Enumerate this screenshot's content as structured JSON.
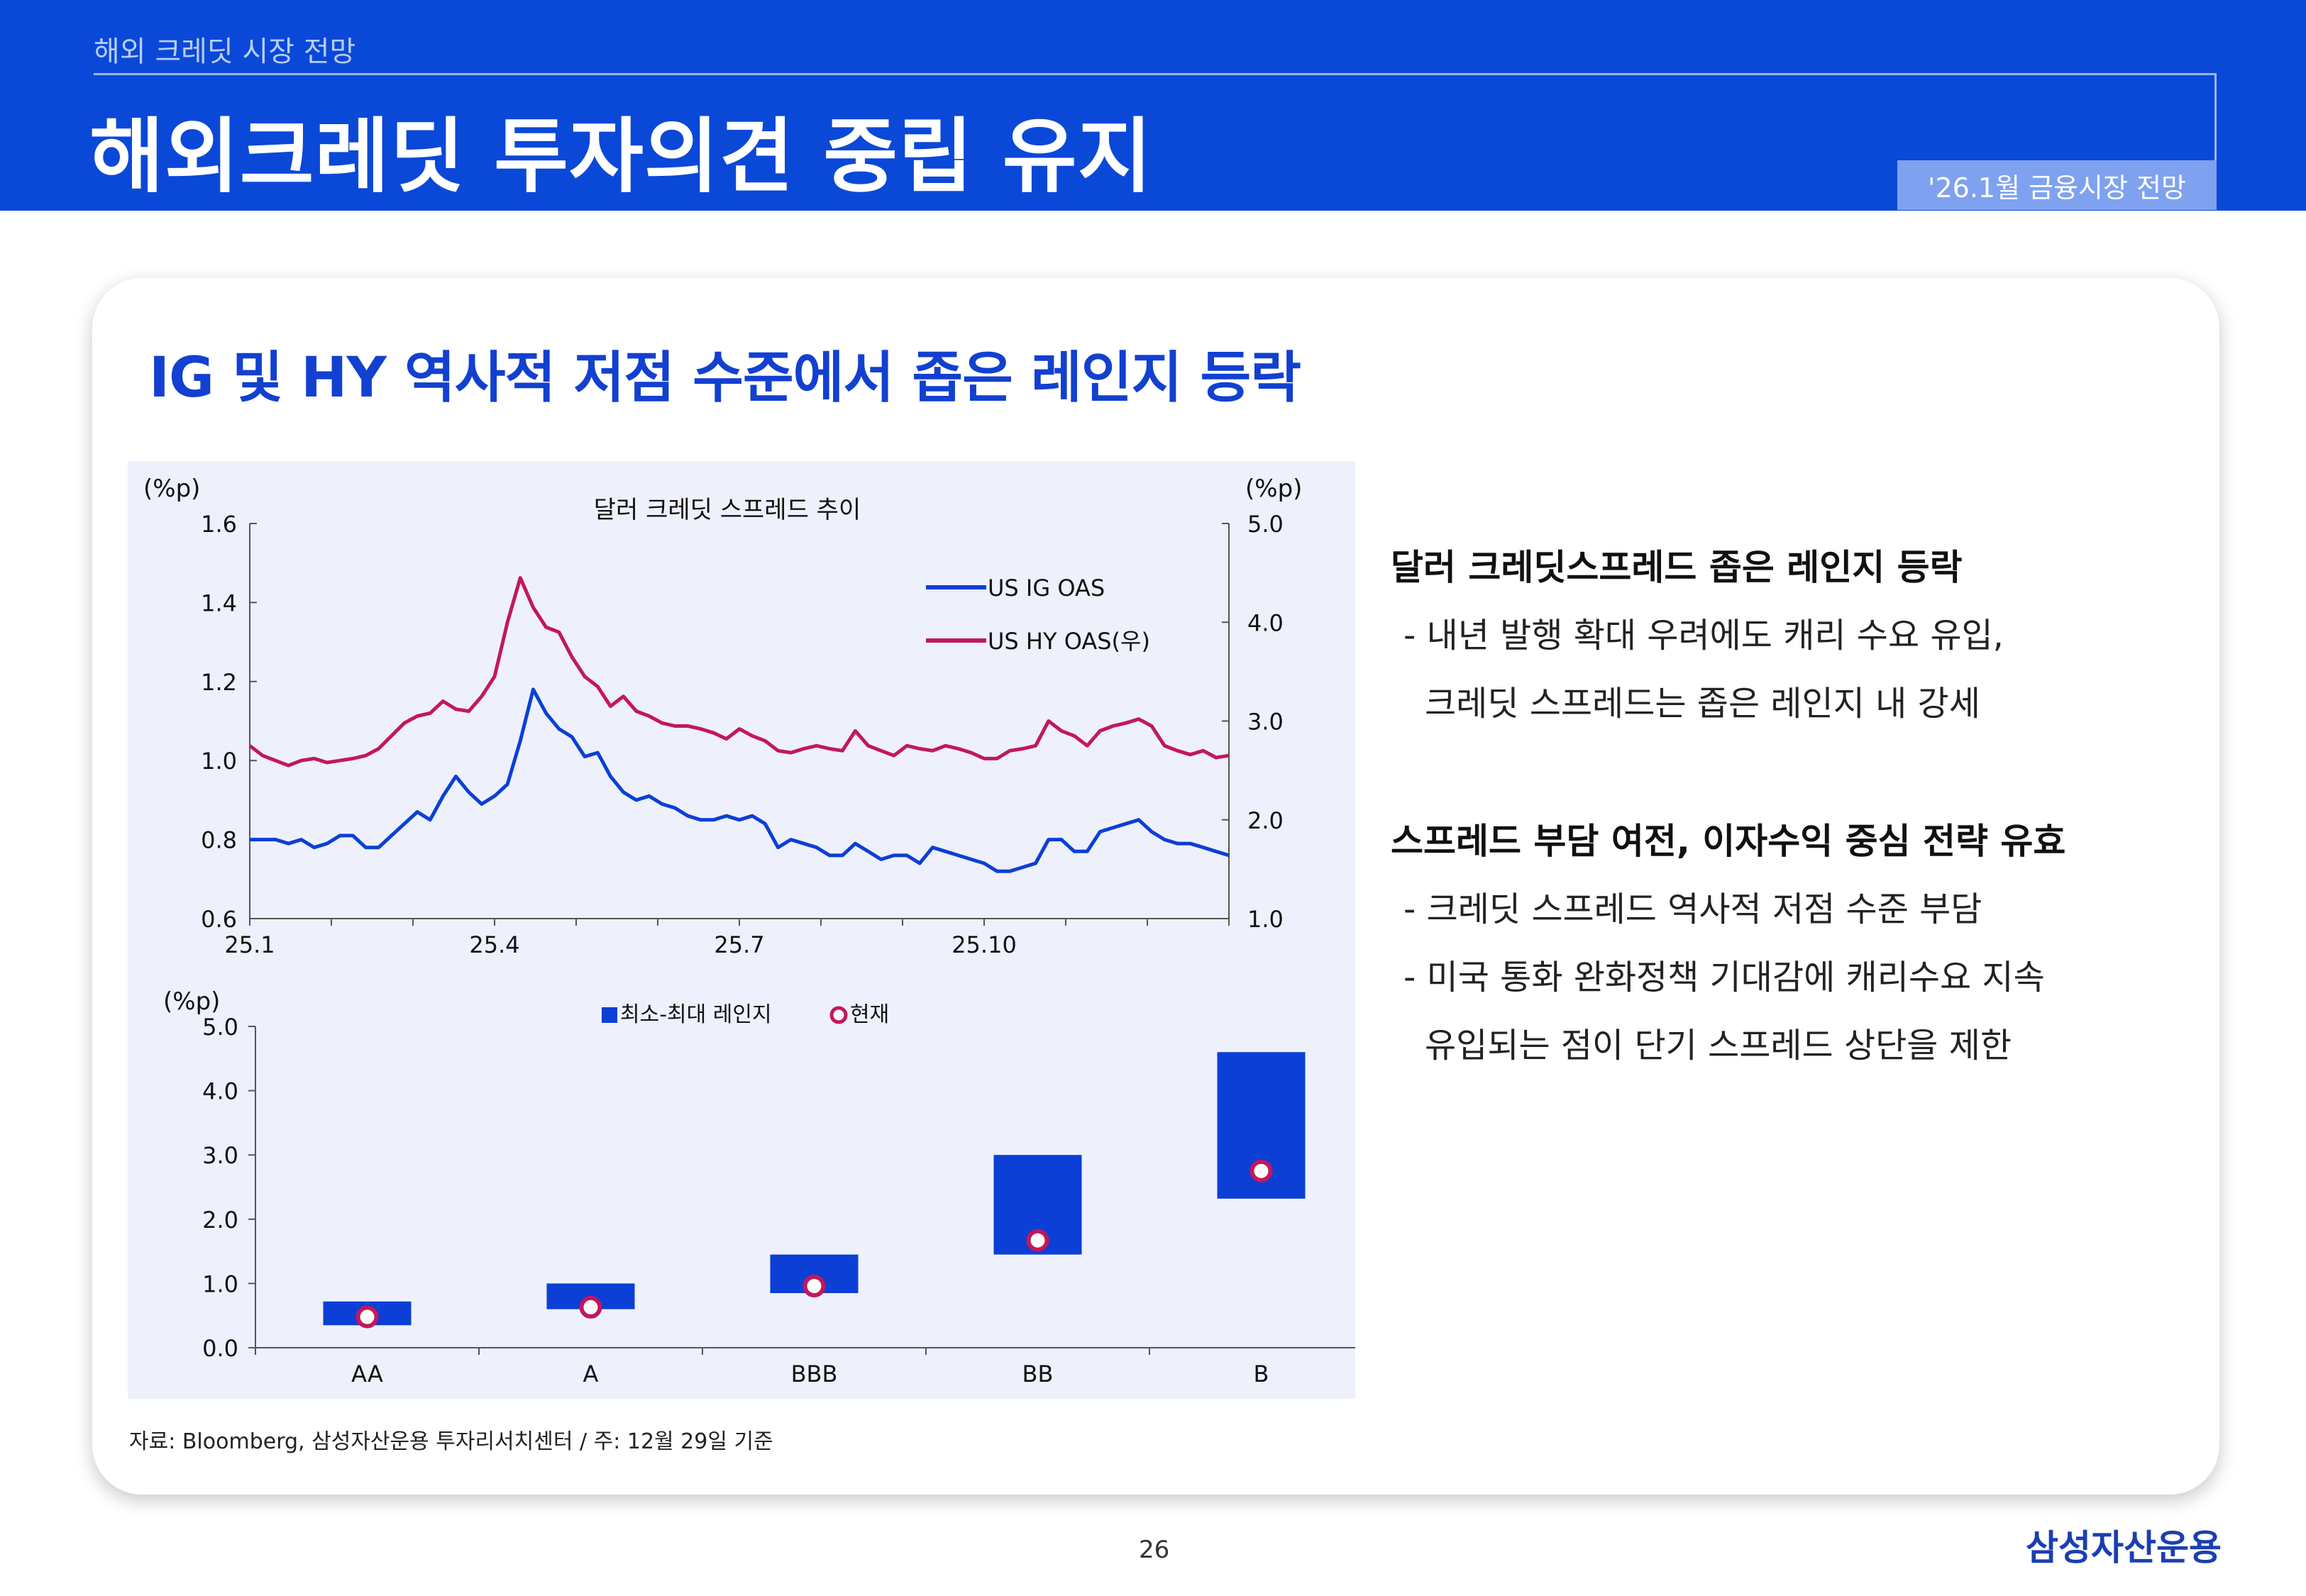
{
  "header": {
    "subtitle": "해외 크레딧 시장 전망",
    "title": "해외크레딧 투자의견 중립 유지",
    "badge": "'26.1월 금융시장 전망"
  },
  "card": {
    "headline": "IG 및 HY 역사적 저점 수준에서 좁은 레인지 등락",
    "source": "자료: Bloomberg, 삼성자산운용 투자리서치센터 / 주: 12월 29일 기준"
  },
  "bullets": {
    "section1_title": "달러 크레딧스프레드 좁은 레인지 등락",
    "section1_line1": "- 내년 발행 확대 우려에도 캐리 수요 유입,",
    "section1_line2": "크레딧 스프레드는 좁은 레인지 내 강세",
    "section2_title": "스프레드 부담 여전, 이자수익 중심 전략 유효",
    "section2_line1": "- 크레딧 스프레드 역사적 저점 수준 부담",
    "section2_line2": "- 미국 통화 완화정책 기대감에 캐리수요 지속",
    "section2_line3": "유입되는 점이 단기 스프레드 상단을 제한"
  },
  "footer": {
    "page_number": "26",
    "logo": "삼성자산운용"
  },
  "colors": {
    "brand_blue": "#0a48d8",
    "ig_line": "#0b3fd6",
    "hy_line": "#c2185b",
    "range_bar": "#0b3fd6",
    "current_marker": "#c2185b"
  },
  "chart_data": [
    {
      "type": "line",
      "title": "달러 크레딧 스프레드 추이",
      "y_left_unit": "(%p)",
      "y_right_unit": "(%p)",
      "x_ticks": [
        "25.1",
        "25.4",
        "25.7",
        "25.10"
      ],
      "y_left_ticks": [
        "0.6",
        "0.8",
        "1.0",
        "1.2",
        "1.4",
        "1.6"
      ],
      "y_right_ticks": [
        "1.0",
        "2.0",
        "3.0",
        "4.0",
        "5.0"
      ],
      "ylim_left": [
        0.6,
        1.6
      ],
      "ylim_right": [
        1.0,
        5.0
      ],
      "legend_position": "top-right",
      "series": [
        {
          "name": "US IG OAS",
          "axis": "left",
          "color": "#0b3fd6",
          "values": [
            0.8,
            0.8,
            0.8,
            0.79,
            0.8,
            0.78,
            0.79,
            0.81,
            0.81,
            0.78,
            0.78,
            0.81,
            0.84,
            0.87,
            0.85,
            0.91,
            0.96,
            0.92,
            0.89,
            0.91,
            0.94,
            1.05,
            1.18,
            1.12,
            1.08,
            1.06,
            1.01,
            1.02,
            0.96,
            0.92,
            0.9,
            0.91,
            0.89,
            0.88,
            0.86,
            0.85,
            0.85,
            0.86,
            0.85,
            0.86,
            0.84,
            0.78,
            0.8,
            0.79,
            0.78,
            0.76,
            0.76,
            0.79,
            0.77,
            0.75,
            0.76,
            0.76,
            0.74,
            0.78,
            0.77,
            0.76,
            0.75,
            0.74,
            0.72,
            0.72,
            0.73,
            0.74,
            0.8,
            0.8,
            0.77,
            0.77,
            0.82,
            0.83,
            0.84,
            0.85,
            0.82,
            0.8,
            0.79,
            0.79,
            0.78,
            0.77,
            0.76
          ]
        },
        {
          "name": "US HY OAS(우)",
          "axis": "right",
          "color": "#c2185b",
          "values": [
            2.75,
            2.65,
            2.6,
            2.55,
            2.6,
            2.62,
            2.58,
            2.6,
            2.62,
            2.65,
            2.72,
            2.85,
            2.98,
            3.05,
            3.08,
            3.2,
            3.12,
            3.1,
            3.25,
            3.45,
            4.0,
            4.45,
            4.15,
            3.95,
            3.9,
            3.65,
            3.45,
            3.35,
            3.15,
            3.25,
            3.1,
            3.05,
            2.98,
            2.95,
            2.95,
            2.92,
            2.88,
            2.82,
            2.92,
            2.85,
            2.8,
            2.7,
            2.68,
            2.72,
            2.75,
            2.72,
            2.7,
            2.9,
            2.75,
            2.7,
            2.65,
            2.75,
            2.72,
            2.7,
            2.75,
            2.72,
            2.68,
            2.62,
            2.62,
            2.7,
            2.72,
            2.75,
            3.0,
            2.9,
            2.85,
            2.75,
            2.9,
            2.95,
            2.98,
            3.02,
            2.95,
            2.75,
            2.7,
            2.66,
            2.7,
            2.63,
            2.65
          ]
        }
      ]
    },
    {
      "type": "bar",
      "y_unit": "(%p)",
      "ylim": [
        0.0,
        5.0
      ],
      "y_ticks": [
        "0.0",
        "1.0",
        "2.0",
        "3.0",
        "4.0",
        "5.0"
      ],
      "categories": [
        "AA",
        "A",
        "BBB",
        "BB",
        "B"
      ],
      "range_min": [
        0.35,
        0.6,
        0.85,
        1.45,
        2.32
      ],
      "range_max": [
        0.72,
        1.0,
        1.45,
        3.0,
        4.6
      ],
      "current": [
        0.48,
        0.63,
        0.96,
        1.67,
        2.75
      ],
      "legend": [
        "최소-최대 레인지",
        "현재"
      ],
      "legend_position": "top"
    }
  ]
}
